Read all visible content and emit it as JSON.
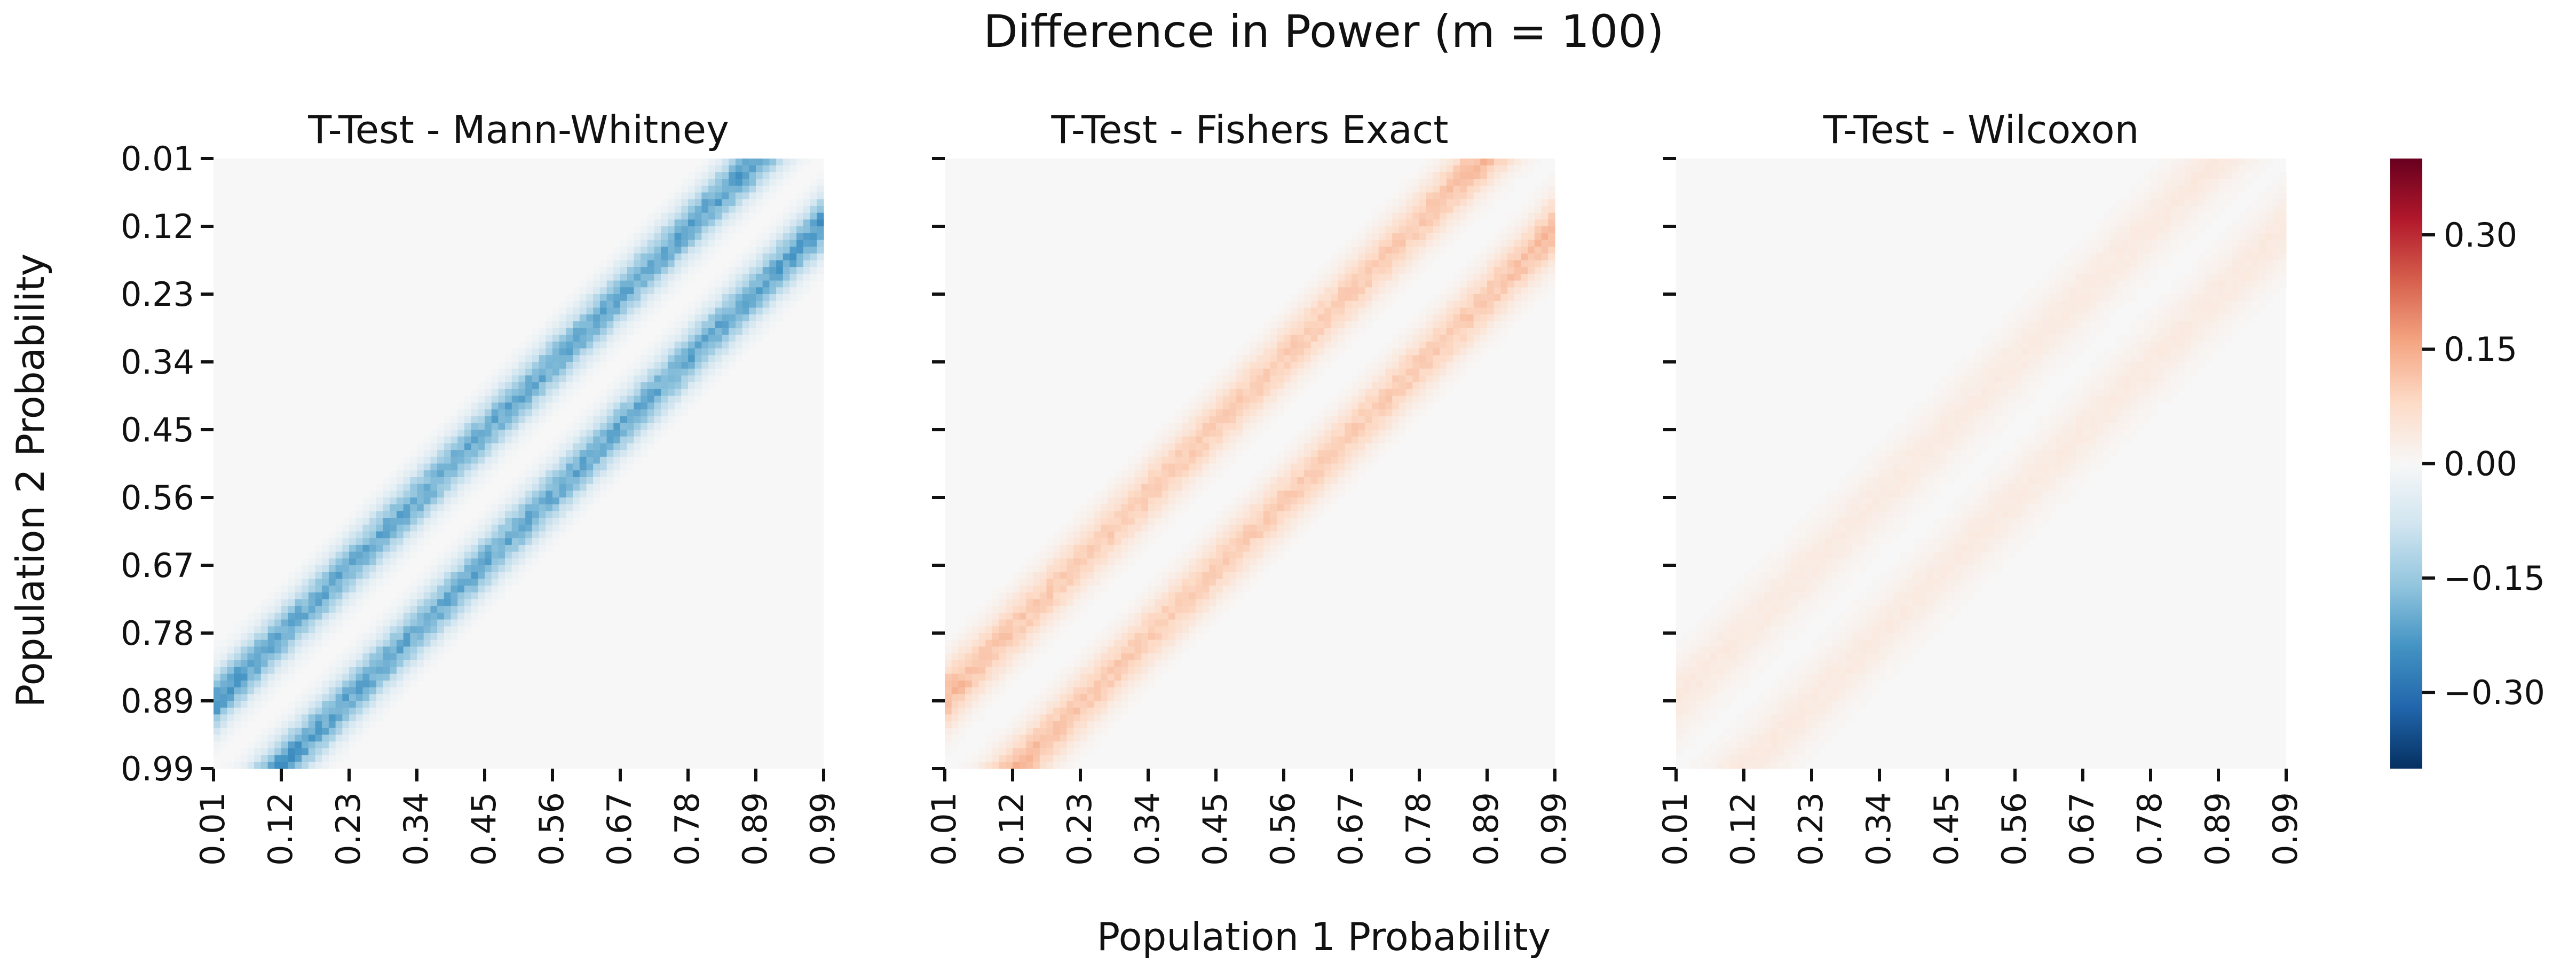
{
  "figure": {
    "title": "Difference in Power (m = 100)",
    "xlabel": "Population 1 Probability",
    "ylabel": "Population 2 Probability"
  },
  "colorbar": {
    "colormap": "RdBu_r",
    "vmin": -0.4,
    "vmax": 0.4,
    "ticks": [
      0.3,
      0.15,
      0.0,
      -0.15,
      -0.3
    ],
    "tick_labels": [
      "0.30",
      "0.15",
      "0.00",
      "−0.15",
      "−0.30"
    ]
  },
  "chart_data": [
    {
      "type": "heatmap",
      "title": "T-Test - Mann-Whitney",
      "x_tick_labels": [
        "0.01",
        "0.12",
        "0.23",
        "0.34",
        "0.45",
        "0.56",
        "0.67",
        "0.78",
        "0.89",
        "0.99"
      ],
      "y_tick_labels": [
        "0.01",
        "0.12",
        "0.23",
        "0.34",
        "0.45",
        "0.56",
        "0.67",
        "0.78",
        "0.89",
        "0.99"
      ],
      "x_range": [
        0.01,
        0.99
      ],
      "y_range": [
        0.01,
        0.99
      ],
      "y_axis_labels_shown": true,
      "pattern": {
        "description_bands": "two bands parallel to the anti-diagonal p1 + p2 = 1",
        "band_offset": 0.105,
        "band_width": 0.045,
        "peak_value": -0.2,
        "end_peak_value": -0.28
      }
    },
    {
      "type": "heatmap",
      "title": "T-Test - Fishers Exact",
      "x_tick_labels": [
        "0.01",
        "0.12",
        "0.23",
        "0.34",
        "0.45",
        "0.56",
        "0.67",
        "0.78",
        "0.89",
        "0.99"
      ],
      "y_tick_labels": [
        "0.01",
        "0.12",
        "0.23",
        "0.34",
        "0.45",
        "0.56",
        "0.67",
        "0.78",
        "0.89",
        "0.99"
      ],
      "x_range": [
        0.01,
        0.99
      ],
      "y_range": [
        0.01,
        0.99
      ],
      "y_axis_labels_shown": false,
      "pattern": {
        "band_offset": 0.115,
        "band_width": 0.05,
        "peak_value": 0.1,
        "end_peak_value": 0.18
      }
    },
    {
      "type": "heatmap",
      "title": "T-Test - Wilcoxon",
      "x_tick_labels": [
        "0.01",
        "0.12",
        "0.23",
        "0.34",
        "0.45",
        "0.56",
        "0.67",
        "0.78",
        "0.89",
        "0.99"
      ],
      "y_tick_labels": [
        "0.01",
        "0.12",
        "0.23",
        "0.34",
        "0.45",
        "0.56",
        "0.67",
        "0.78",
        "0.89",
        "0.99"
      ],
      "x_range": [
        0.01,
        0.99
      ],
      "y_range": [
        0.01,
        0.99
      ],
      "y_axis_labels_shown": false,
      "pattern": {
        "band_offset": 0.11,
        "band_width": 0.06,
        "peak_value": 0.035,
        "end_peak_value": 0.05
      }
    }
  ]
}
